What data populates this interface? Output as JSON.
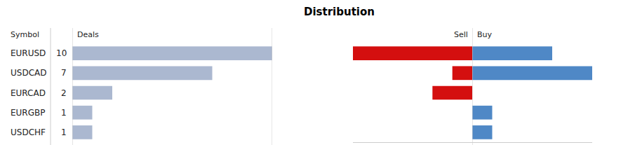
{
  "chart_data": [
    {
      "type": "bar",
      "title": "Distribution",
      "orientation": "horizontal",
      "ylabel": "Symbol",
      "xlabel": "Deals",
      "categories": [
        "EURUSD",
        "USDCAD",
        "EURCAD",
        "EURGBP",
        "USDCHF"
      ],
      "values": [
        10,
        7,
        2,
        1,
        1
      ],
      "color": "#abb8d0",
      "xlim": [
        0,
        10
      ],
      "xticks": [],
      "tick_labels": "y",
      "data_labels": true,
      "grid": false
    },
    {
      "type": "bar",
      "orientation": "horizontal",
      "categories": [
        "EURUSD",
        "USDCAD",
        "EURCAD",
        "EURGBP",
        "USDCHF"
      ],
      "series": [
        {
          "name": "Sell",
          "color": "#d40f0f",
          "values": [
            6,
            1,
            2,
            0,
            0
          ]
        },
        {
          "name": "Buy",
          "color": "#4f88c6",
          "values": [
            4,
            6,
            0,
            1,
            1
          ]
        }
      ],
      "xlim": [
        0,
        6
      ],
      "xticks": [],
      "tick_labels": false,
      "grid": false
    }
  ]
}
